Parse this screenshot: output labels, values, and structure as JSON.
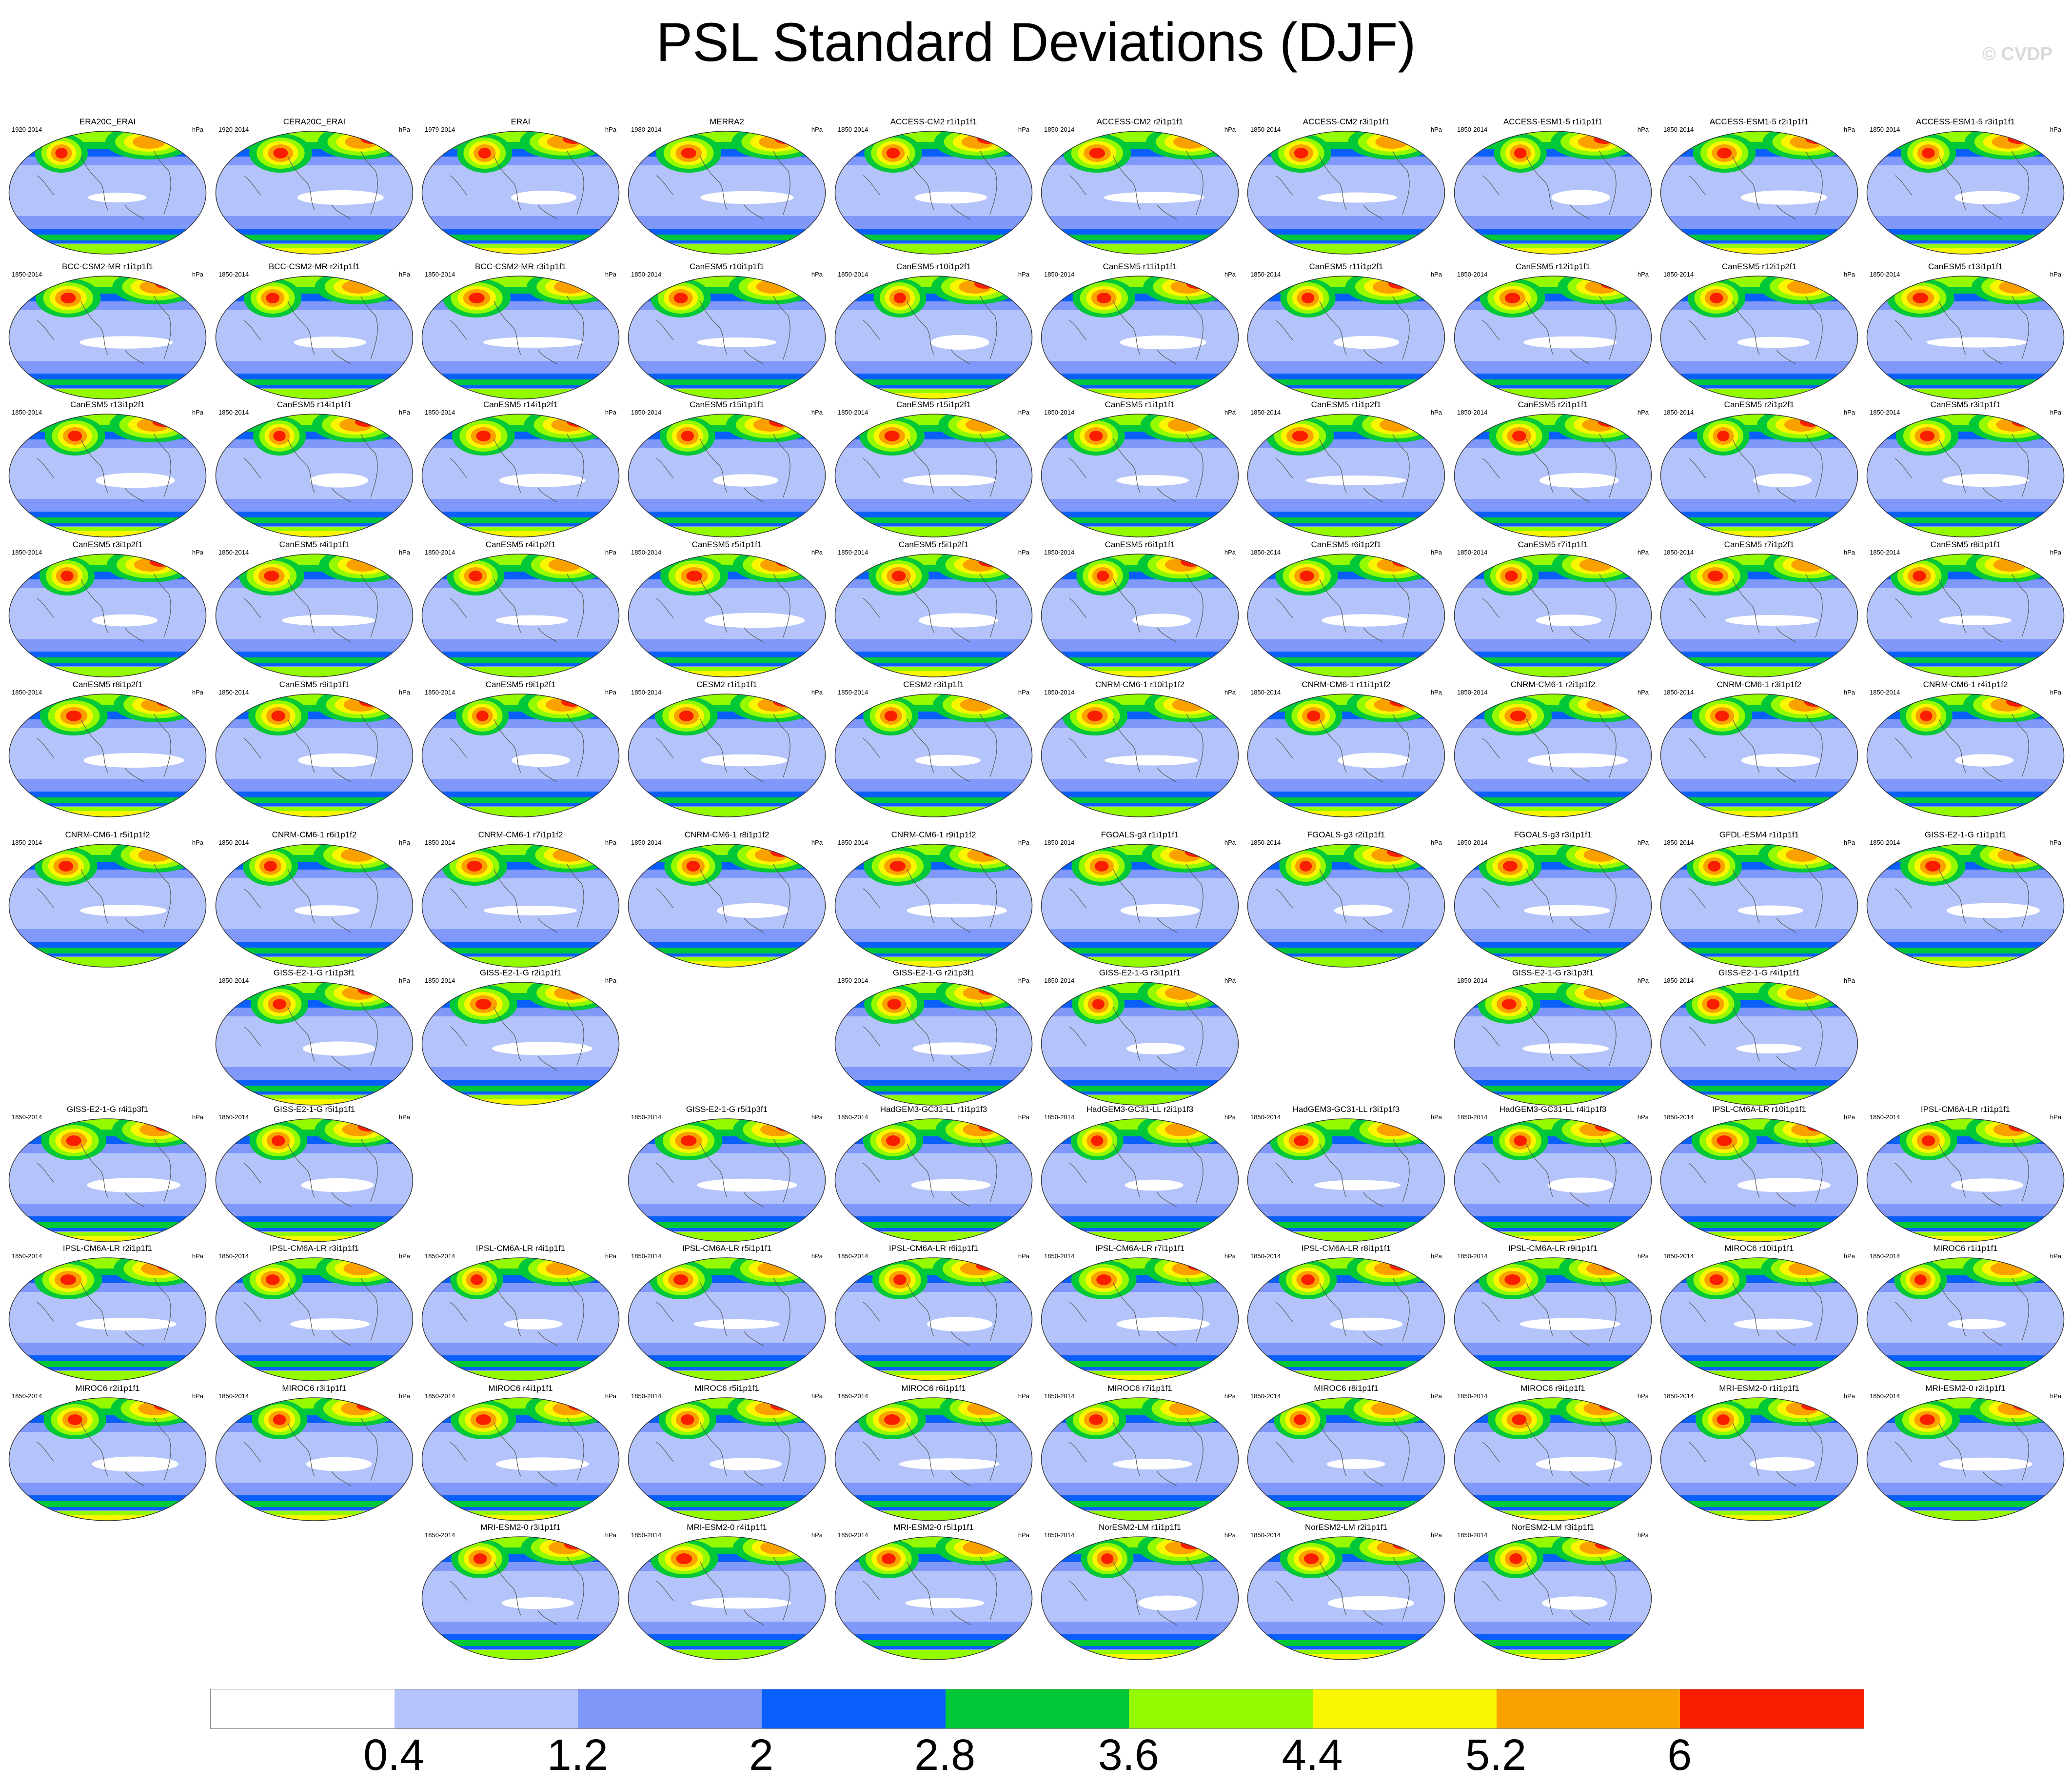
{
  "title": "PSL Standard Deviations (DJF)",
  "watermark": "© CVDP",
  "units": "hPa",
  "chart_data": {
    "type": "heatmap",
    "title": "PSL Standard Deviations (DJF)",
    "units": "hPa",
    "colorbar": {
      "labels": [
        "0.4",
        "1.2",
        "2",
        "2.8",
        "3.6",
        "4.4",
        "5.2",
        "6"
      ],
      "colors": [
        "#ffffff",
        "#b4c4fa",
        "#7f98f9",
        "#0a5ffa",
        "#00c838",
        "#94fa00",
        "#faf500",
        "#faa100",
        "#fa1e00"
      ]
    },
    "panels": [
      {
        "title": "ERA20C_ERAI",
        "years": "1920-2014"
      },
      {
        "title": "CERA20C_ERAI",
        "years": "1920-2014"
      },
      {
        "title": "ERAI",
        "years": "1979-2014"
      },
      {
        "title": "MERRA2",
        "years": "1980-2014"
      },
      {
        "title": "ACCESS-CM2 r1i1p1f1",
        "years": "1850-2014"
      },
      {
        "title": "ACCESS-CM2 r2i1p1f1",
        "years": "1850-2014"
      },
      {
        "title": "ACCESS-CM2 r3i1p1f1",
        "years": "1850-2014"
      },
      {
        "title": "ACCESS-ESM1-5 r1i1p1f1",
        "years": "1850-2014"
      },
      {
        "title": "ACCESS-ESM1-5 r2i1p1f1",
        "years": "1850-2014"
      },
      {
        "title": "ACCESS-ESM1-5 r3i1p1f1",
        "years": "1850-2014"
      },
      {
        "title": "BCC-CSM2-MR r1i1p1f1",
        "years": "1850-2014"
      },
      {
        "title": "BCC-CSM2-MR r2i1p1f1",
        "years": "1850-2014"
      },
      {
        "title": "BCC-CSM2-MR r3i1p1f1",
        "years": "1850-2014"
      },
      {
        "title": "CanESM5 r10i1p1f1",
        "years": "1850-2014"
      },
      {
        "title": "CanESM5 r10i1p2f1",
        "years": "1850-2014"
      },
      {
        "title": "CanESM5 r11i1p1f1",
        "years": "1850-2014"
      },
      {
        "title": "CanESM5 r11i1p2f1",
        "years": "1850-2014"
      },
      {
        "title": "CanESM5 r12i1p1f1",
        "years": "1850-2014"
      },
      {
        "title": "CanESM5 r12i1p2f1",
        "years": "1850-2014"
      },
      {
        "title": "CanESM5 r13i1p1f1",
        "years": "1850-2014"
      },
      {
        "title": "CanESM5 r13i1p2f1",
        "years": "1850-2014"
      },
      {
        "title": "CanESM5 r14i1p1f1",
        "years": "1850-2014"
      },
      {
        "title": "CanESM5 r14i1p2f1",
        "years": "1850-2014"
      },
      {
        "title": "CanESM5 r15i1p1f1",
        "years": "1850-2014"
      },
      {
        "title": "CanESM5 r15i1p2f1",
        "years": "1850-2014"
      },
      {
        "title": "CanESM5 r1i1p1f1",
        "years": "1850-2014"
      },
      {
        "title": "CanESM5 r1i1p2f1",
        "years": "1850-2014"
      },
      {
        "title": "CanESM5 r2i1p1f1",
        "years": "1850-2014"
      },
      {
        "title": "CanESM5 r2i1p2f1",
        "years": "1850-2014"
      },
      {
        "title": "CanESM5 r3i1p1f1",
        "years": "1850-2014"
      },
      {
        "title": "CanESM5 r3i1p2f1",
        "years": "1850-2014"
      },
      {
        "title": "CanESM5 r4i1p1f1",
        "years": "1850-2014"
      },
      {
        "title": "CanESM5 r4i1p2f1",
        "years": "1850-2014"
      },
      {
        "title": "CanESM5 r5i1p1f1",
        "years": "1850-2014"
      },
      {
        "title": "CanESM5 r5i1p2f1",
        "years": "1850-2014"
      },
      {
        "title": "CanESM5 r6i1p1f1",
        "years": "1850-2014"
      },
      {
        "title": "CanESM5 r6i1p2f1",
        "years": "1850-2014"
      },
      {
        "title": "CanESM5 r7i1p1f1",
        "years": "1850-2014"
      },
      {
        "title": "CanESM5 r7i1p2f1",
        "years": "1850-2014"
      },
      {
        "title": "CanESM5 r8i1p1f1",
        "years": "1850-2014"
      },
      {
        "title": "CanESM5 r8i1p2f1",
        "years": "1850-2014"
      },
      {
        "title": "CanESM5 r9i1p1f1",
        "years": "1850-2014"
      },
      {
        "title": "CanESM5 r9i1p2f1",
        "years": "1850-2014"
      },
      {
        "title": "CESM2 r1i1p1f1",
        "years": "1850-2014"
      },
      {
        "title": "CESM2 r3i1p1f1",
        "years": "1850-2014"
      },
      {
        "title": "CNRM-CM6-1 r10i1p1f2",
        "years": "1850-2014"
      },
      {
        "title": "CNRM-CM6-1 r11i1p1f2",
        "years": "1850-2014"
      },
      {
        "title": "CNRM-CM6-1 r2i1p1f2",
        "years": "1850-2014"
      },
      {
        "title": "CNRM-CM6-1 r3i1p1f2",
        "years": "1850-2014"
      },
      {
        "title": "CNRM-CM6-1 r4i1p1f2",
        "years": "1850-2014"
      },
      {
        "title": "CNRM-CM6-1 r5i1p1f2",
        "years": "1850-2014"
      },
      {
        "title": "CNRM-CM6-1 r6i1p1f2",
        "years": "1850-2014"
      },
      {
        "title": "CNRM-CM6-1 r7i1p1f2",
        "years": "1850-2014"
      },
      {
        "title": "CNRM-CM6-1 r8i1p1f2",
        "years": "1850-2014"
      },
      {
        "title": "CNRM-CM6-1 r9i1p1f2",
        "years": "1850-2014"
      },
      {
        "title": "FGOALS-g3 r1i1p1f1",
        "years": "1850-2014"
      },
      {
        "title": "FGOALS-g3 r2i1p1f1",
        "years": "1850-2014"
      },
      {
        "title": "FGOALS-g3 r3i1p1f1",
        "years": "1850-2014"
      },
      {
        "title": "GFDL-ESM4 r1i1p1f1",
        "years": "1850-2014"
      },
      {
        "title": "GISS-E2-1-G r1i1p1f1",
        "years": "1850-2014"
      },
      {
        "title": "GISS-E2-1-G r1i1p3f1",
        "years": "1850-2014"
      },
      {
        "title": "GISS-E2-1-G r2i1p1f1",
        "years": "1850-2014"
      },
      {
        "title": "GISS-E2-1-G r2i1p3f1",
        "years": "1850-2014"
      },
      {
        "title": "GISS-E2-1-G r3i1p1f1",
        "years": "1850-2014"
      },
      {
        "title": "GISS-E2-1-G r3i1p3f1",
        "years": "1850-2014"
      },
      {
        "title": "GISS-E2-1-G r4i1p1f1",
        "years": "1850-2014"
      },
      {
        "title": "GISS-E2-1-G r4i1p3f1",
        "years": "1850-2014"
      },
      {
        "title": "GISS-E2-1-G r5i1p1f1",
        "years": "1850-2014"
      },
      {
        "title": "GISS-E2-1-G r5i1p3f1",
        "years": "1850-2014"
      },
      {
        "title": "HadGEM3-GC31-LL r1i1p1f3",
        "years": "1850-2014"
      },
      {
        "title": "HadGEM3-GC31-LL r2i1p1f3",
        "years": "1850-2014"
      },
      {
        "title": "HadGEM3-GC31-LL r3i1p1f3",
        "years": "1850-2014"
      },
      {
        "title": "HadGEM3-GC31-LL r4i1p1f3",
        "years": "1850-2014"
      },
      {
        "title": "IPSL-CM6A-LR r10i1p1f1",
        "years": "1850-2014"
      },
      {
        "title": "IPSL-CM6A-LR r1i1p1f1",
        "years": "1850-2014"
      },
      {
        "title": "IPSL-CM6A-LR r2i1p1f1",
        "years": "1850-2014"
      },
      {
        "title": "IPSL-CM6A-LR r3i1p1f1",
        "years": "1850-2014"
      },
      {
        "title": "IPSL-CM6A-LR r4i1p1f1",
        "years": "1850-2014"
      },
      {
        "title": "IPSL-CM6A-LR r5i1p1f1",
        "years": "1850-2014"
      },
      {
        "title": "IPSL-CM6A-LR r6i1p1f1",
        "years": "1850-2014"
      },
      {
        "title": "IPSL-CM6A-LR r7i1p1f1",
        "years": "1850-2014"
      },
      {
        "title": "IPSL-CM6A-LR r8i1p1f1",
        "years": "1850-2014"
      },
      {
        "title": "IPSL-CM6A-LR r9i1p1f1",
        "years": "1850-2014"
      },
      {
        "title": "MIROC6 r10i1p1f1",
        "years": "1850-2014"
      },
      {
        "title": "MIROC6 r1i1p1f1",
        "years": "1850-2014"
      },
      {
        "title": "MIROC6 r2i1p1f1",
        "years": "1850-2014"
      },
      {
        "title": "MIROC6 r3i1p1f1",
        "years": "1850-2014"
      },
      {
        "title": "MIROC6 r4i1p1f1",
        "years": "1850-2014"
      },
      {
        "title": "MIROC6 r5i1p1f1",
        "years": "1850-2014"
      },
      {
        "title": "MIROC6 r6i1p1f1",
        "years": "1850-2014"
      },
      {
        "title": "MIROC6 r7i1p1f1",
        "years": "1850-2014"
      },
      {
        "title": "MIROC6 r8i1p1f1",
        "years": "1850-2014"
      },
      {
        "title": "MIROC6 r9i1p1f1",
        "years": "1850-2014"
      },
      {
        "title": "MRI-ESM2-0 r1i1p1f1",
        "years": "1850-2014"
      },
      {
        "title": "MRI-ESM2-0 r2i1p1f1",
        "years": "1850-2014"
      },
      {
        "title": "MRI-ESM2-0 r3i1p1f1",
        "years": "1850-2014"
      },
      {
        "title": "MRI-ESM2-0 r4i1p1f1",
        "years": "1850-2014"
      },
      {
        "title": "MRI-ESM2-0 r5i1p1f1",
        "years": "1850-2014"
      },
      {
        "title": "NorESM2-LM r1i1p1f1",
        "years": "1850-2014"
      },
      {
        "title": "NorESM2-LM r2i1p1f1",
        "years": "1850-2014"
      },
      {
        "title": "NorESM2-LM r3i1p1f1",
        "years": "1850-2014"
      }
    ]
  }
}
